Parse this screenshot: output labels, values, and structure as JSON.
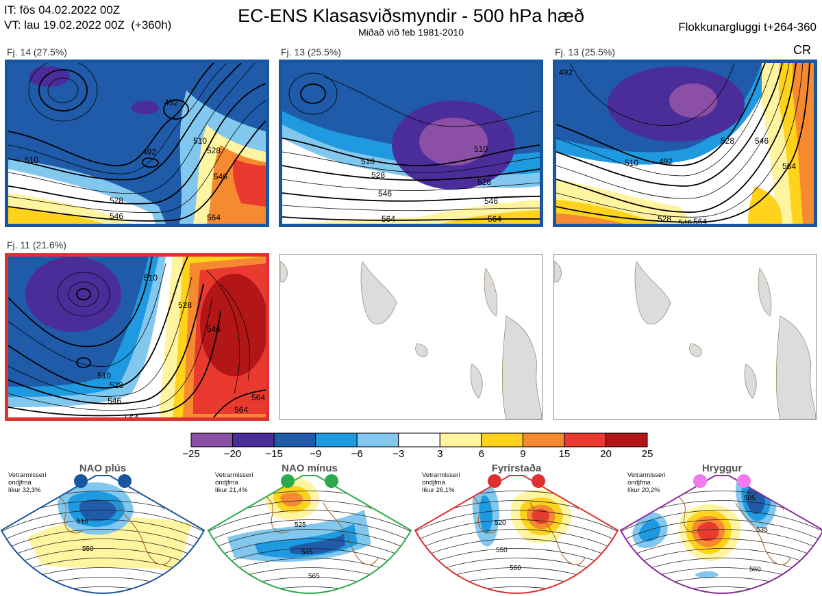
{
  "header": {
    "it_line": "IT: fös 04.02.2022 00Z",
    "vt_line": "VT: lau 19.02.2022 00Z  (+360h)",
    "title": "EC-ENS Klasasviðsmyndir - 500 hPa hæð",
    "subtitle": "Miðað við feb 1981-2010",
    "window": "Flokkunargluggi t+264-360",
    "corner_code": "CR"
  },
  "panels": [
    {
      "label": "Fj. 14 (27.5%)",
      "border_color": "#1a55a0",
      "contours": [
        "492",
        "492",
        "510",
        "510",
        "528",
        "528",
        "546",
        "546",
        "564"
      ]
    },
    {
      "label": "Fj. 13 (25.5%)",
      "border_color": "#1a55a0",
      "contours": [
        "510",
        "510",
        "528",
        "528",
        "546",
        "546",
        "564",
        "564"
      ]
    },
    {
      "label": "Fj. 13 (25.5%)",
      "border_color": "#1a55a0",
      "contours": [
        "492",
        "492",
        "510",
        "528",
        "546",
        "528",
        "546",
        "564",
        "564"
      ]
    },
    {
      "label": "Fj. 11 (21.6%)",
      "border_color": "#e03030",
      "contours": [
        "510",
        "528",
        "546",
        "510",
        "528",
        "546",
        "564",
        "564",
        "564"
      ]
    }
  ],
  "empty_maps": 2,
  "colorbar": {
    "colors": [
      "#8c4fa6",
      "#4b2d9a",
      "#1f5ba8",
      "#1f9ae0",
      "#82c8ee",
      "#ffffff",
      "#fff4a0",
      "#ffd21c",
      "#f58a30",
      "#ea3a30",
      "#b21616"
    ],
    "ticks": [
      "−25",
      "−20",
      "−15",
      "−9",
      "−6",
      "−3",
      "3",
      "6",
      "9",
      "15",
      "20",
      "25"
    ]
  },
  "regimes": [
    {
      "title": "NAO plús",
      "note": [
        "Vetrarmisseri",
        "ondjfma",
        "líkur 32,3%"
      ],
      "color": "#1a55a0",
      "dot_color": "#1a55a0",
      "contours": [
        "510",
        "550"
      ]
    },
    {
      "title": "NAO mínus",
      "note": [
        "Vetrarmisseri",
        "ondjfma",
        "líkur 21,4%"
      ],
      "color": "#2aaa4a",
      "dot_color": "#2aaa4a",
      "contours": [
        "525",
        "545",
        "565"
      ]
    },
    {
      "title": "Fyrirstaða",
      "note": [
        "Vetrarmisseri",
        "ondjfma",
        "líkur 26,1%"
      ],
      "color": "#e03030",
      "dot_color": "#e03030",
      "contours": [
        "520",
        "550",
        "560"
      ]
    },
    {
      "title": "Hryggur",
      "note": [
        "Vetrarmisseri",
        "ondjfma",
        "líkur 20,2%"
      ],
      "color": "#8a2a9a",
      "dot_color": "#ee7aee",
      "contours": [
        "505",
        "535",
        "560"
      ]
    }
  ]
}
